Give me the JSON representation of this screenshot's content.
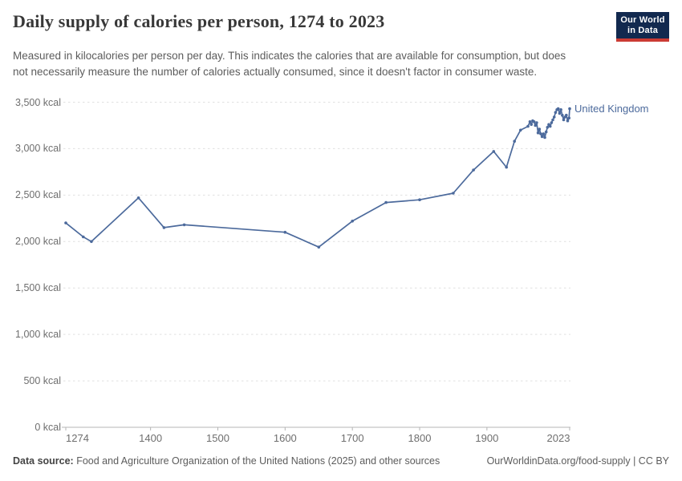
{
  "header": {
    "title": "Daily supply of calories per person, 1274 to 2023",
    "subtitle": "Measured in kilocalories per person per day. This indicates the calories that are available for consumption, but does not necessarily measure the number of calories actually consumed, since it doesn't factor in consumer waste."
  },
  "logo": {
    "line1": "Our World",
    "line2": "in Data"
  },
  "footer": {
    "source_label": "Data source:",
    "source_text": " Food and Agriculture Organization of the United Nations (2025) and other sources",
    "attribution": "OurWorldinData.org/food-supply | CC BY"
  },
  "colors": {
    "line": "#4c6a9c",
    "series_label": "#4c6a9c",
    "grid": "#e0e0e0",
    "axis": "#b5b5b5",
    "logo_bg": "#12294f",
    "logo_red": "#cb3b34"
  },
  "chart_data": {
    "type": "line",
    "title": "Daily supply of calories per person, 1274 to 2023",
    "xlabel": "",
    "ylabel": "",
    "xlim": [
      1274,
      2023
    ],
    "ylim": [
      0,
      3500
    ],
    "grid": "horizontal-dashed",
    "legend_position": "end-of-line",
    "yticks": [
      {
        "value": 0,
        "label": "0 kcal"
      },
      {
        "value": 500,
        "label": "500 kcal"
      },
      {
        "value": 1000,
        "label": "1,000 kcal"
      },
      {
        "value": 1500,
        "label": "1,500 kcal"
      },
      {
        "value": 2000,
        "label": "2,000 kcal"
      },
      {
        "value": 2500,
        "label": "2,500 kcal"
      },
      {
        "value": 3000,
        "label": "3,000 kcal"
      },
      {
        "value": 3500,
        "label": "3,500 kcal"
      }
    ],
    "xticks": [
      {
        "value": 1274,
        "label": "1274"
      },
      {
        "value": 1400,
        "label": "1400"
      },
      {
        "value": 1500,
        "label": "1500"
      },
      {
        "value": 1600,
        "label": "1600"
      },
      {
        "value": 1700,
        "label": "1700"
      },
      {
        "value": 1800,
        "label": "1800"
      },
      {
        "value": 1900,
        "label": "1900"
      },
      {
        "value": 2023,
        "label": "2023"
      }
    ],
    "series": [
      {
        "name": "United Kingdom",
        "color": "#4c6a9c",
        "points": [
          [
            1274,
            2200
          ],
          [
            1300,
            2050
          ],
          [
            1312,
            2000
          ],
          [
            1382,
            2470
          ],
          [
            1420,
            2150
          ],
          [
            1450,
            2180
          ],
          [
            1600,
            2100
          ],
          [
            1650,
            1940
          ],
          [
            1700,
            2220
          ],
          [
            1750,
            2420
          ],
          [
            1800,
            2450
          ],
          [
            1850,
            2520
          ],
          [
            1880,
            2770
          ],
          [
            1910,
            2970
          ],
          [
            1929,
            2800
          ],
          [
            1941,
            3080
          ],
          [
            1950,
            3200
          ],
          [
            1961,
            3240
          ],
          [
            1964,
            3290
          ],
          [
            1966,
            3260
          ],
          [
            1968,
            3300
          ],
          [
            1970,
            3290
          ],
          [
            1972,
            3250
          ],
          [
            1974,
            3280
          ],
          [
            1976,
            3170
          ],
          [
            1978,
            3210
          ],
          [
            1980,
            3160
          ],
          [
            1982,
            3130
          ],
          [
            1984,
            3160
          ],
          [
            1986,
            3120
          ],
          [
            1988,
            3180
          ],
          [
            1990,
            3230
          ],
          [
            1992,
            3260
          ],
          [
            1994,
            3240
          ],
          [
            1996,
            3280
          ],
          [
            1998,
            3310
          ],
          [
            2000,
            3340
          ],
          [
            2002,
            3390
          ],
          [
            2004,
            3420
          ],
          [
            2006,
            3430
          ],
          [
            2008,
            3380
          ],
          [
            2010,
            3420
          ],
          [
            2012,
            3360
          ],
          [
            2014,
            3310
          ],
          [
            2016,
            3340
          ],
          [
            2018,
            3360
          ],
          [
            2020,
            3300
          ],
          [
            2022,
            3330
          ],
          [
            2023,
            3430
          ]
        ]
      }
    ]
  }
}
